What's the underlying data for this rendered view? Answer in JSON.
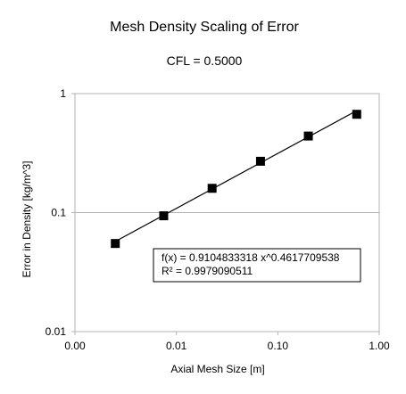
{
  "chart_data": {
    "type": "scatter",
    "title": "Mesh Density Scaling of Error",
    "subtitle": "CFL = 0.5000",
    "xlabel": "Axial Mesh Size [m]",
    "ylabel": "Error in Density  [kg/m^3]",
    "x_scale": "log",
    "y_scale": "log",
    "xlim": [
      0.001,
      1.0
    ],
    "ylim": [
      0.01,
      1.0
    ],
    "x_ticks": [
      "0.00",
      "0.01",
      "0.10",
      "1.00"
    ],
    "y_ticks": [
      "1",
      "0.1",
      "0.01"
    ],
    "grid": "horizontal major",
    "series": [
      {
        "marker": "square",
        "color": "#000000",
        "x": [
          0.0025,
          0.0075,
          0.0225,
          0.0675,
          0.2,
          0.6
        ],
        "y": [
          0.055,
          0.094,
          0.16,
          0.27,
          0.44,
          0.67
        ]
      }
    ],
    "trendline": {
      "type": "power",
      "a": 0.9104833318,
      "b": 0.4617709538,
      "equation": "f(x) = 0.9104833318 x^0.4617709538",
      "r_squared": "R² = 0.9979090511"
    }
  }
}
